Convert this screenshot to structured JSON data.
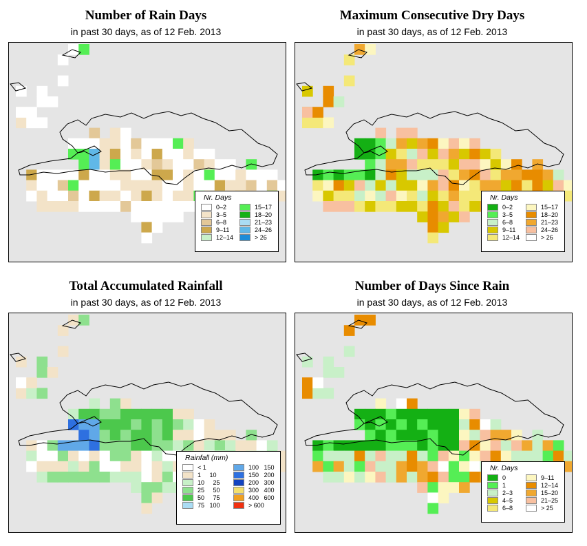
{
  "panels": [
    {
      "id": "rain-days",
      "title": "Number of Rain Days",
      "subtitle": "in past 30 days, as of  12 Feb. 2013",
      "legend": {
        "title": "Nr. Days",
        "columns": [
          [
            {
              "label": "0–2",
              "color": "#ffffff"
            },
            {
              "label": "3–5",
              "color": "#f3e3c8"
            },
            {
              "label": "6–8",
              "color": "#e3c898"
            },
            {
              "label": "9–11",
              "color": "#cda84c"
            },
            {
              "label": "12–14",
              "color": "#c8f0c8"
            }
          ],
          [
            {
              "label": "15–17",
              "color": "#55ee55"
            },
            {
              "label": "18–20",
              "color": "#14b014"
            },
            {
              "label": "21–23",
              "color": "#aadcf4"
            },
            {
              "label": "24–26",
              "color": "#60b8e8"
            },
            {
              "label": "> 26",
              "color": "#1c8cd8"
            }
          ]
        ]
      }
    },
    {
      "id": "dry-days",
      "title": "Maximum Consecutive Dry Days",
      "subtitle": "in past 30 days, as of  12 Feb. 2013",
      "legend": {
        "title": "Nr. Days",
        "columns": [
          [
            {
              "label": "0–2",
              "color": "#14b014"
            },
            {
              "label": "3–5",
              "color": "#55ee55"
            },
            {
              "label": "6–8",
              "color": "#c8f0c8"
            },
            {
              "label": "9–11",
              "color": "#d8c800"
            },
            {
              "label": "12–14",
              "color": "#f4e878"
            }
          ],
          [
            {
              "label": "15–17",
              "color": "#fcf6c0"
            },
            {
              "label": "18–20",
              "color": "#e88c00"
            },
            {
              "label": "21–23",
              "color": "#f0a830"
            },
            {
              "label": "24–26",
              "color": "#f8c0a0"
            },
            {
              "label": "> 26",
              "color": "#ffffff"
            }
          ]
        ]
      }
    },
    {
      "id": "rainfall",
      "title": "Total Accumulated Rainfall",
      "subtitle": "in past 30 days, as of  12 Feb. 2013",
      "legend": {
        "title": "Rainfall (mm)",
        "columns": [
          [
            {
              "label": "< 1",
              "color": "#ffffff"
            },
            {
              "label": "1     10",
              "color": "#f3e3c8"
            },
            {
              "label": "10     25",
              "color": "#c8f0c8"
            },
            {
              "label": "25     50",
              "color": "#8ee08e"
            },
            {
              "label": "50     75",
              "color": "#4cc84c"
            },
            {
              "label": "75   100",
              "color": "#aadcf4"
            }
          ],
          [
            {
              "label": "100   150",
              "color": "#60a8e8"
            },
            {
              "label": "150   200",
              "color": "#2e70e0"
            },
            {
              "label": "200   300",
              "color": "#1444c0"
            },
            {
              "label": "300   400",
              "color": "#f4e06c"
            },
            {
              "label": "400   600",
              "color": "#f0a020"
            },
            {
              "label": "> 600",
              "color": "#f03010"
            }
          ]
        ]
      }
    },
    {
      "id": "since-rain",
      "title": "Number of Days Since Rain",
      "subtitle": "in past 30 days, as of  12 Feb. 2013",
      "legend": {
        "title": "Nr. Days",
        "columns": [
          [
            {
              "label": "0",
              "color": "#14b014"
            },
            {
              "label": "1",
              "color": "#55ee55"
            },
            {
              "label": "2–3",
              "color": "#c8f0c8"
            },
            {
              "label": "4–5",
              "color": "#d8c800"
            },
            {
              "label": "6–8",
              "color": "#f4e878"
            }
          ],
          [
            {
              "label": "9–11",
              "color": "#fcf6c0"
            },
            {
              "label": "12–14",
              "color": "#e88c00"
            },
            {
              "label": "15–20",
              "color": "#f0a830"
            },
            {
              "label": "21–25",
              "color": "#f8c0a0"
            },
            {
              "label": "> 25",
              "color": "#ffffff"
            }
          ]
        ]
      }
    }
  ]
}
